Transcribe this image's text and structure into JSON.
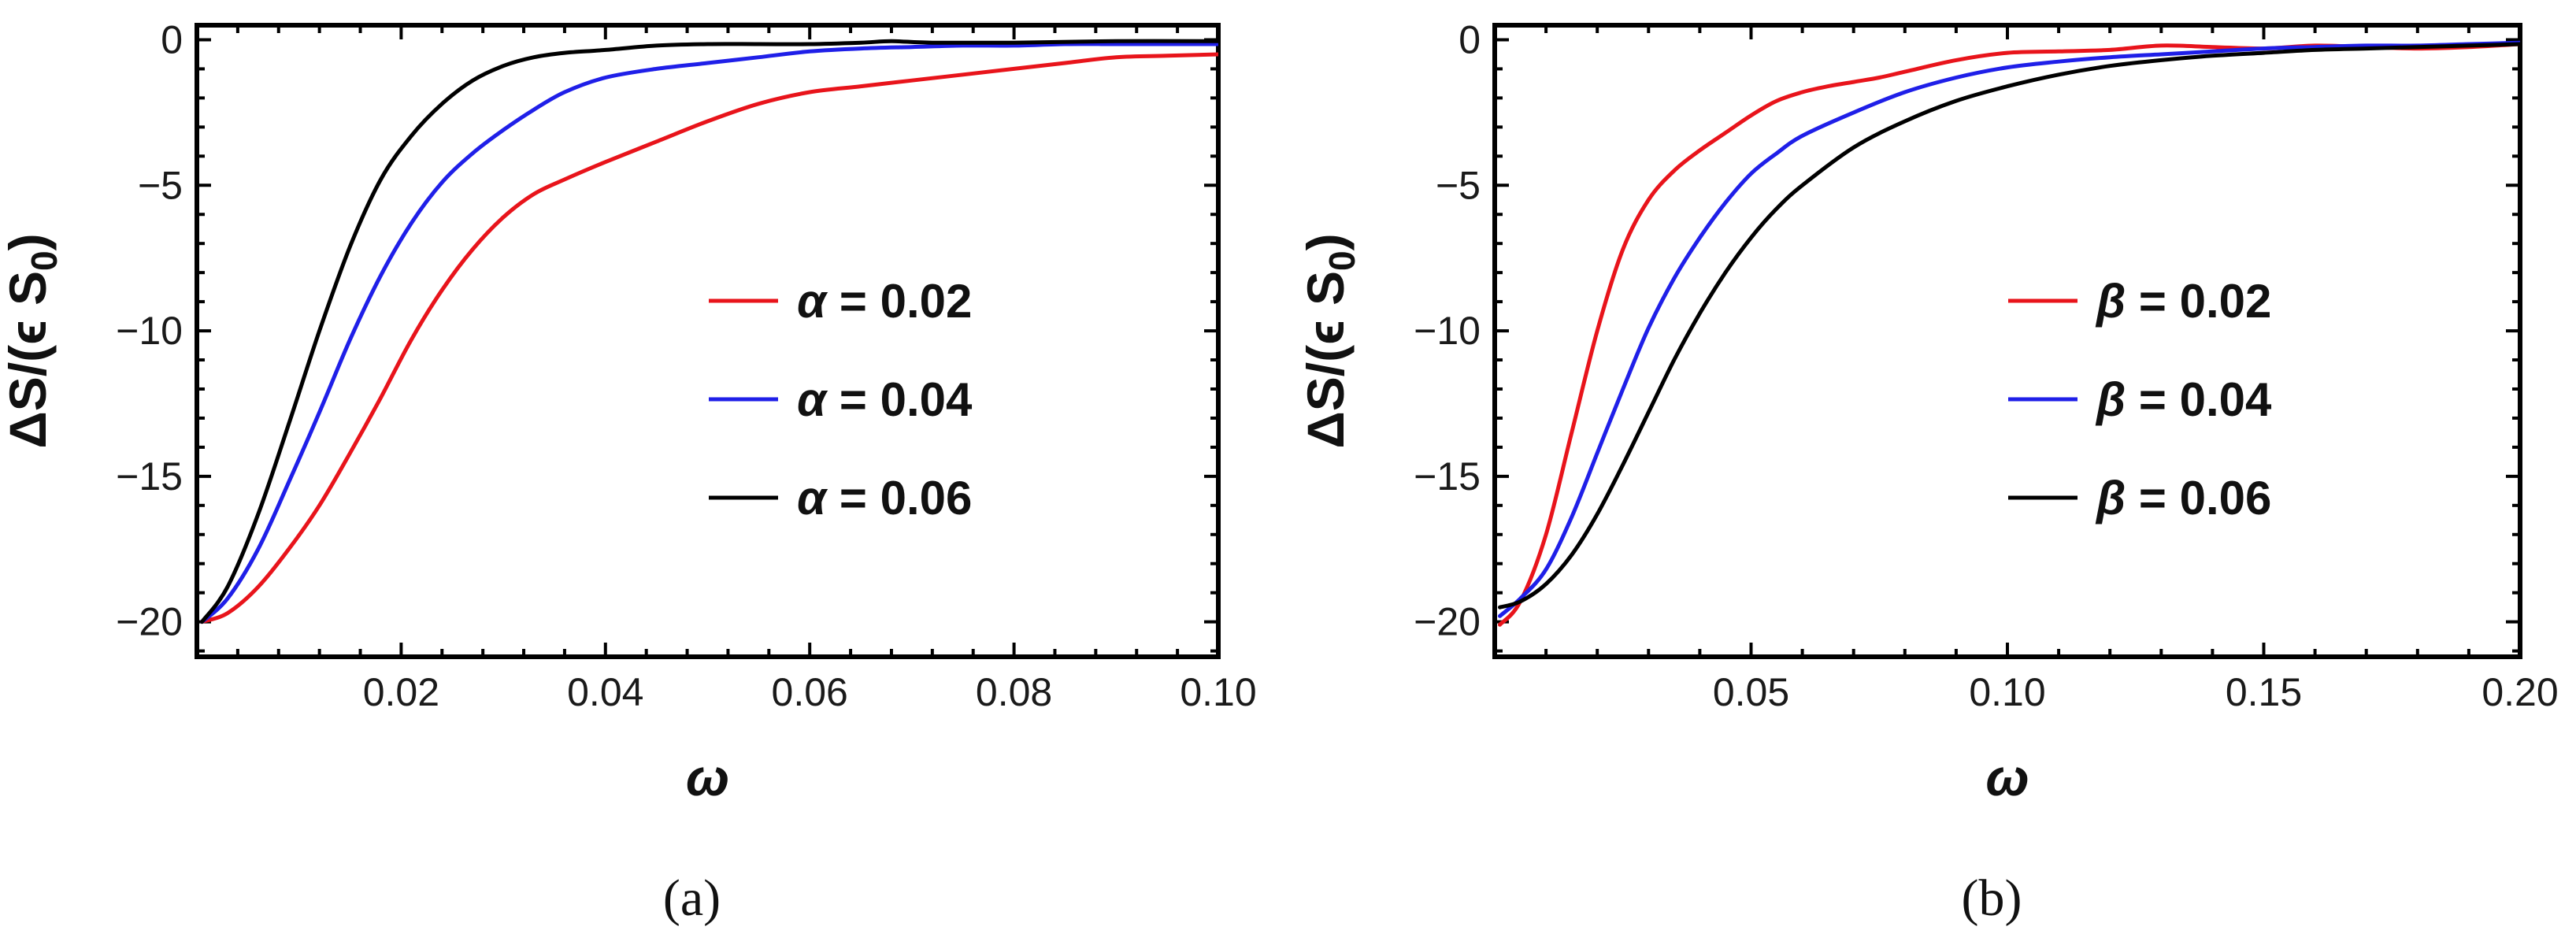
{
  "chart_data": [
    {
      "type": "line",
      "caption": "(a)",
      "xlabel": "ω",
      "ylabel": "ΔS/(ϵ S",
      "ylabel_sub": "0",
      "ylabel_close": ")",
      "xlim": [
        0.0,
        0.1
      ],
      "ylim": [
        -21.2,
        0.5
      ],
      "xticks": [
        0.02,
        0.04,
        0.06,
        0.08,
        0.1
      ],
      "xtick_labels": [
        "0.02",
        "0.04",
        "0.06",
        "0.08",
        "0.10"
      ],
      "yticks": [
        0,
        -5,
        -10,
        -15,
        -20
      ],
      "ytick_labels": [
        "0",
        "−5",
        "−10",
        "−15",
        "−20"
      ],
      "legend_position": "center-right",
      "series": [
        {
          "name": "α = 0.02",
          "symbol": "α",
          "value_label": " = 0.02",
          "color": "#e8141b",
          "points": [
            [
              0.0005,
              -20.0
            ],
            [
              0.003,
              -19.7
            ],
            [
              0.006,
              -18.8
            ],
            [
              0.009,
              -17.5
            ],
            [
              0.012,
              -16.0
            ],
            [
              0.015,
              -14.2
            ],
            [
              0.018,
              -12.3
            ],
            [
              0.021,
              -10.3
            ],
            [
              0.024,
              -8.6
            ],
            [
              0.027,
              -7.2
            ],
            [
              0.03,
              -6.1
            ],
            [
              0.033,
              -5.3
            ],
            [
              0.036,
              -4.8
            ],
            [
              0.04,
              -4.2
            ],
            [
              0.045,
              -3.5
            ],
            [
              0.05,
              -2.8
            ],
            [
              0.055,
              -2.2
            ],
            [
              0.06,
              -1.8
            ],
            [
              0.065,
              -1.6
            ],
            [
              0.07,
              -1.4
            ],
            [
              0.075,
              -1.2
            ],
            [
              0.08,
              -1.0
            ],
            [
              0.085,
              -0.8
            ],
            [
              0.09,
              -0.6
            ],
            [
              0.095,
              -0.55
            ],
            [
              0.1,
              -0.5
            ]
          ]
        },
        {
          "name": "α = 0.04",
          "symbol": "α",
          "value_label": " = 0.04",
          "color": "#1f1fe8",
          "points": [
            [
              0.0005,
              -20.0
            ],
            [
              0.003,
              -19.2
            ],
            [
              0.006,
              -17.5
            ],
            [
              0.009,
              -15.2
            ],
            [
              0.012,
              -12.8
            ],
            [
              0.015,
              -10.3
            ],
            [
              0.018,
              -8.1
            ],
            [
              0.021,
              -6.3
            ],
            [
              0.024,
              -4.9
            ],
            [
              0.027,
              -3.9
            ],
            [
              0.03,
              -3.1
            ],
            [
              0.033,
              -2.4
            ],
            [
              0.036,
              -1.8
            ],
            [
              0.04,
              -1.3
            ],
            [
              0.045,
              -1.0
            ],
            [
              0.05,
              -0.8
            ],
            [
              0.055,
              -0.6
            ],
            [
              0.06,
              -0.4
            ],
            [
              0.065,
              -0.3
            ],
            [
              0.07,
              -0.25
            ],
            [
              0.075,
              -0.2
            ],
            [
              0.08,
              -0.2
            ],
            [
              0.085,
              -0.15
            ],
            [
              0.09,
              -0.15
            ],
            [
              0.095,
              -0.15
            ],
            [
              0.1,
              -0.15
            ]
          ]
        },
        {
          "name": "α = 0.06",
          "symbol": "α",
          "value_label": " = 0.06",
          "color": "#000000",
          "points": [
            [
              0.0005,
              -20.0
            ],
            [
              0.003,
              -18.8
            ],
            [
              0.006,
              -16.3
            ],
            [
              0.009,
              -13.2
            ],
            [
              0.012,
              -10.0
            ],
            [
              0.015,
              -7.1
            ],
            [
              0.018,
              -4.8
            ],
            [
              0.021,
              -3.3
            ],
            [
              0.024,
              -2.2
            ],
            [
              0.027,
              -1.4
            ],
            [
              0.03,
              -0.9
            ],
            [
              0.033,
              -0.6
            ],
            [
              0.036,
              -0.45
            ],
            [
              0.04,
              -0.35
            ],
            [
              0.045,
              -0.2
            ],
            [
              0.05,
              -0.15
            ],
            [
              0.055,
              -0.15
            ],
            [
              0.06,
              -0.15
            ],
            [
              0.065,
              -0.1
            ],
            [
              0.068,
              -0.05
            ],
            [
              0.072,
              -0.1
            ],
            [
              0.08,
              -0.1
            ],
            [
              0.09,
              -0.05
            ],
            [
              0.1,
              -0.05
            ]
          ]
        }
      ]
    },
    {
      "type": "line",
      "caption": "(b)",
      "xlabel": "ω",
      "ylabel": "ΔS/(ϵ S",
      "ylabel_sub": "0",
      "ylabel_close": ")",
      "xlim": [
        0.0,
        0.2
      ],
      "ylim": [
        -21.2,
        0.5
      ],
      "xticks": [
        0.05,
        0.1,
        0.15,
        0.2
      ],
      "xtick_labels": [
        "0.05",
        "0.10",
        "0.15",
        "0.20"
      ],
      "yticks": [
        0,
        -5,
        -10,
        -15,
        -20
      ],
      "ytick_labels": [
        "0",
        "−5",
        "−10",
        "−15",
        "−20"
      ],
      "legend_position": "center-right",
      "series": [
        {
          "name": "β = 0.02",
          "symbol": "β",
          "value_label": " = 0.02",
          "color": "#e8141b",
          "points": [
            [
              0.001,
              -20.1
            ],
            [
              0.005,
              -19.3
            ],
            [
              0.01,
              -17.0
            ],
            [
              0.015,
              -13.5
            ],
            [
              0.02,
              -10.0
            ],
            [
              0.025,
              -7.2
            ],
            [
              0.03,
              -5.5
            ],
            [
              0.035,
              -4.5
            ],
            [
              0.04,
              -3.8
            ],
            [
              0.045,
              -3.2
            ],
            [
              0.05,
              -2.6
            ],
            [
              0.055,
              -2.1
            ],
            [
              0.06,
              -1.8
            ],
            [
              0.065,
              -1.6
            ],
            [
              0.07,
              -1.45
            ],
            [
              0.075,
              -1.3
            ],
            [
              0.08,
              -1.1
            ],
            [
              0.09,
              -0.7
            ],
            [
              0.1,
              -0.45
            ],
            [
              0.11,
              -0.4
            ],
            [
              0.12,
              -0.35
            ],
            [
              0.13,
              -0.2
            ],
            [
              0.14,
              -0.25
            ],
            [
              0.15,
              -0.3
            ],
            [
              0.16,
              -0.2
            ],
            [
              0.17,
              -0.25
            ],
            [
              0.18,
              -0.3
            ],
            [
              0.19,
              -0.25
            ],
            [
              0.2,
              -0.15
            ]
          ]
        },
        {
          "name": "β = 0.04",
          "symbol": "β",
          "value_label": " = 0.04",
          "color": "#1f1fe8",
          "points": [
            [
              0.001,
              -19.8
            ],
            [
              0.005,
              -19.2
            ],
            [
              0.01,
              -18.2
            ],
            [
              0.015,
              -16.4
            ],
            [
              0.02,
              -14.2
            ],
            [
              0.025,
              -12.0
            ],
            [
              0.03,
              -9.9
            ],
            [
              0.035,
              -8.2
            ],
            [
              0.04,
              -6.8
            ],
            [
              0.045,
              -5.6
            ],
            [
              0.05,
              -4.6
            ],
            [
              0.055,
              -3.9
            ],
            [
              0.06,
              -3.3
            ],
            [
              0.07,
              -2.5
            ],
            [
              0.08,
              -1.8
            ],
            [
              0.09,
              -1.3
            ],
            [
              0.1,
              -0.95
            ],
            [
              0.11,
              -0.75
            ],
            [
              0.12,
              -0.6
            ],
            [
              0.13,
              -0.5
            ],
            [
              0.14,
              -0.4
            ],
            [
              0.15,
              -0.3
            ],
            [
              0.16,
              -0.25
            ],
            [
              0.17,
              -0.2
            ],
            [
              0.18,
              -0.2
            ],
            [
              0.19,
              -0.15
            ],
            [
              0.2,
              -0.1
            ]
          ]
        },
        {
          "name": "β = 0.06",
          "symbol": "β",
          "value_label": " = 0.06",
          "color": "#000000",
          "points": [
            [
              0.001,
              -19.5
            ],
            [
              0.005,
              -19.3
            ],
            [
              0.01,
              -18.7
            ],
            [
              0.015,
              -17.7
            ],
            [
              0.02,
              -16.3
            ],
            [
              0.025,
              -14.6
            ],
            [
              0.03,
              -12.8
            ],
            [
              0.035,
              -11.0
            ],
            [
              0.04,
              -9.4
            ],
            [
              0.045,
              -8.0
            ],
            [
              0.05,
              -6.8
            ],
            [
              0.055,
              -5.8
            ],
            [
              0.06,
              -5.0
            ],
            [
              0.07,
              -3.7
            ],
            [
              0.08,
              -2.8
            ],
            [
              0.09,
              -2.1
            ],
            [
              0.1,
              -1.6
            ],
            [
              0.11,
              -1.2
            ],
            [
              0.12,
              -0.9
            ],
            [
              0.13,
              -0.7
            ],
            [
              0.14,
              -0.55
            ],
            [
              0.15,
              -0.45
            ],
            [
              0.16,
              -0.35
            ],
            [
              0.17,
              -0.3
            ],
            [
              0.18,
              -0.25
            ],
            [
              0.19,
              -0.2
            ],
            [
              0.2,
              -0.15
            ]
          ]
        }
      ]
    }
  ]
}
